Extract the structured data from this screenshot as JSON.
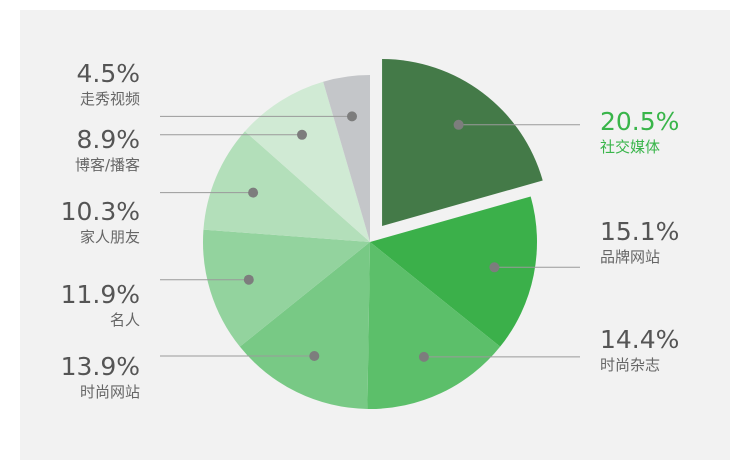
{
  "chart_data": {
    "type": "pie",
    "title": "",
    "legend": "none",
    "slices": [
      {
        "label": "社交媒体",
        "percent_label": "20.5%",
        "value": 20.5,
        "color": "#447a48",
        "exploded": true,
        "highlight": true
      },
      {
        "label": "品牌网站",
        "percent_label": "15.1%",
        "value": 15.1,
        "color": "#3bb04a"
      },
      {
        "label": "时尚杂志",
        "percent_label": "14.4%",
        "value": 14.4,
        "color": "#5cbf6a"
      },
      {
        "label": "时尚网站",
        "percent_label": "13.9%",
        "value": 13.9,
        "color": "#78c985"
      },
      {
        "label": "名人",
        "percent_label": "11.9%",
        "value": 11.9,
        "color": "#93d39e"
      },
      {
        "label": "家人朋友",
        "percent_label": "10.3%",
        "value": 10.3,
        "color": "#b3dfba"
      },
      {
        "label": "博客/播客",
        "percent_label": "8.9%",
        "value": 8.9,
        "color": "#d0ead4"
      },
      {
        "label": "走秀视频",
        "percent_label": "4.5%",
        "value": 4.5,
        "color": "#c4c6c9"
      }
    ]
  }
}
